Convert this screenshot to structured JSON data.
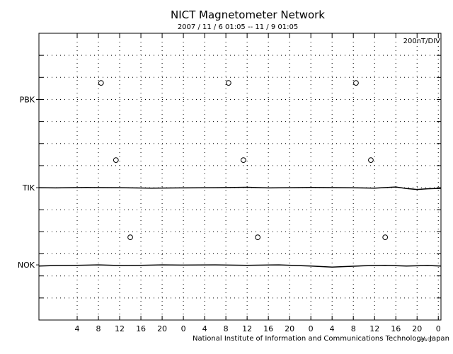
{
  "chart_data": {
    "type": "line",
    "title": "NICT Magnetometer Network",
    "subtitle": "2007 / 11 /  6   01:05 -- 11 /  9   01:05",
    "scale_label": "200nT/DIV",
    "credit": "National Institute of Information and Communications Technology, Japan",
    "stamp": "ver.00",
    "xlabel": "",
    "ylabel": "",
    "x_tick_labels": [
      "4",
      "8",
      "12",
      "16",
      "20",
      "0",
      "4",
      "8",
      "12",
      "16",
      "20",
      "0",
      "4",
      "8",
      "12",
      "16",
      "20",
      "0"
    ],
    "x_tick_hours": [
      4,
      8,
      12,
      16,
      20,
      24,
      28,
      32,
      36,
      40,
      44,
      48,
      52,
      56,
      60,
      64,
      68,
      72
    ],
    "xlim_hours": [
      -3.2,
      72.5
    ],
    "grid": true,
    "stations": [
      {
        "name": "PBK",
        "baseline_division": 3
      },
      {
        "name": "TIK",
        "baseline_division": 7
      },
      {
        "name": "NOK",
        "baseline_division": 10.5
      }
    ],
    "y_divisions": 13,
    "series": [
      {
        "name": "TIK",
        "hours": [
          -3.2,
          0,
          6,
          12,
          18,
          24,
          30,
          36,
          40,
          44,
          48,
          54,
          60,
          64,
          66,
          68,
          70,
          72.5
        ],
        "offset_div": [
          0.0,
          0.01,
          -0.01,
          0.0,
          0.02,
          0.01,
          0.0,
          -0.02,
          0.01,
          0.0,
          -0.01,
          0.0,
          0.02,
          -0.03,
          0.04,
          0.08,
          0.05,
          0.03
        ]
      },
      {
        "name": "NOK",
        "hours": [
          -3.2,
          0,
          4,
          8,
          12,
          16,
          20,
          24,
          30,
          36,
          42,
          48,
          52,
          54,
          58,
          62,
          66,
          70,
          72.5
        ],
        "offset_div": [
          0.05,
          0.03,
          0.02,
          0.0,
          0.03,
          0.02,
          0.0,
          0.01,
          0.0,
          0.02,
          0.0,
          0.05,
          0.1,
          0.08,
          0.04,
          0.02,
          0.05,
          0.03,
          0.05
        ]
      }
    ],
    "markers": [
      {
        "hour": 8.5,
        "division": 2.25
      },
      {
        "hour": 32.5,
        "division": 2.25
      },
      {
        "hour": 56.5,
        "division": 2.25
      },
      {
        "hour": 11.3,
        "division": 5.75
      },
      {
        "hour": 35.3,
        "division": 5.75
      },
      {
        "hour": 59.3,
        "division": 5.75
      },
      {
        "hour": 14.0,
        "division": 9.25
      },
      {
        "hour": 38.0,
        "division": 9.25
      },
      {
        "hour": 62.0,
        "division": 9.25
      }
    ]
  }
}
